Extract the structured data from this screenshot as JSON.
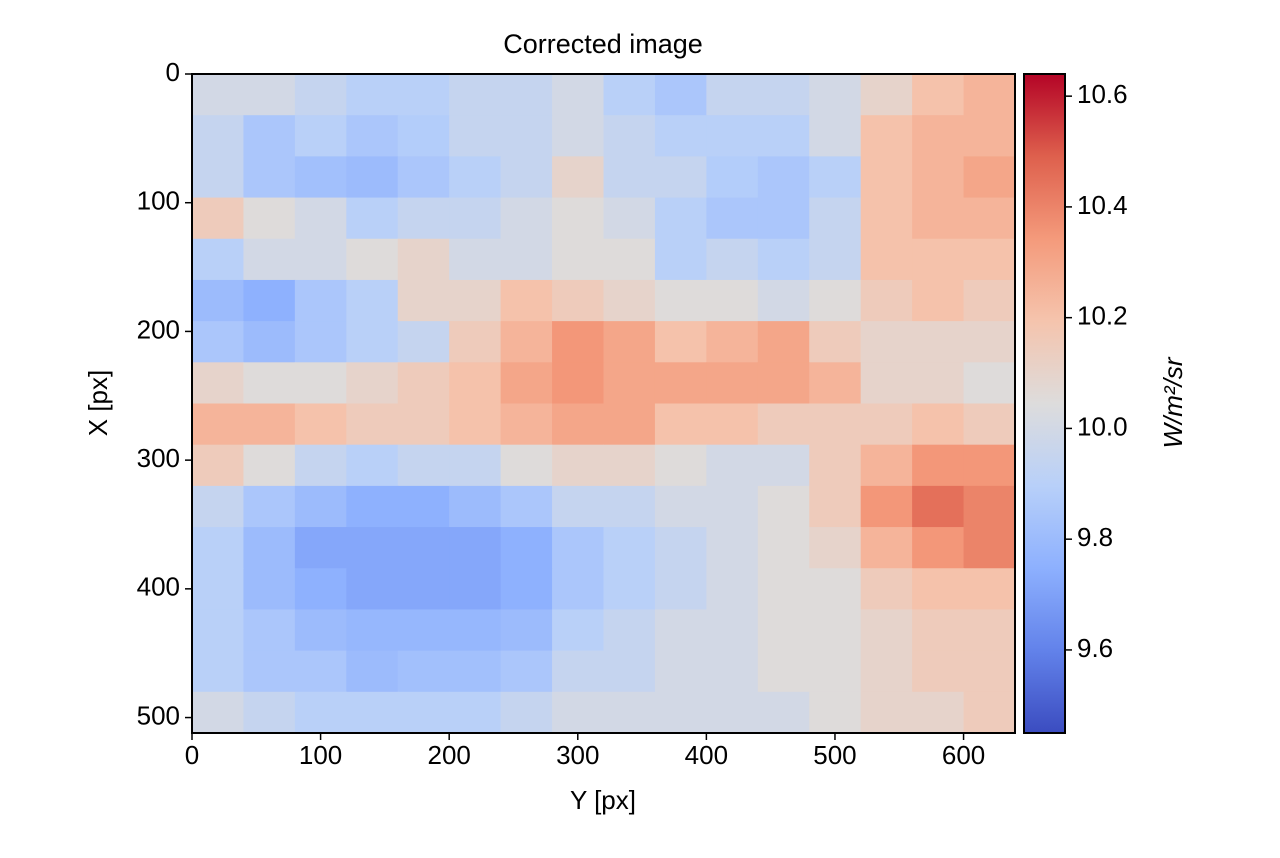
{
  "chart_data": {
    "type": "heatmap",
    "title": "Corrected image",
    "x_label": "Y [px]",
    "y_label": "X [px]",
    "colorbar_label": "W/m²/sr",
    "colormap": "coolwarm",
    "xlim": [
      0,
      640
    ],
    "xticks": [
      0,
      100,
      200,
      300,
      400,
      500,
      600
    ],
    "ylim": [
      512,
      0
    ],
    "yticks": [
      0,
      100,
      200,
      300,
      400,
      500
    ],
    "clim": [
      9.45,
      10.64
    ],
    "cticks": [
      9.6,
      9.8,
      {
        "value": 10,
        "label": "10.0"
      },
      10.2,
      10.4,
      10.6
    ],
    "values": [
      [
        10.0,
        10.0,
        9.95,
        9.9,
        9.9,
        9.95,
        9.95,
        10.0,
        9.9,
        9.85,
        9.95,
        9.95,
        10.0,
        10.1,
        10.2,
        10.25
      ],
      [
        9.95,
        9.85,
        9.9,
        9.85,
        9.88,
        9.95,
        9.95,
        10.0,
        9.95,
        9.9,
        9.9,
        9.9,
        10.0,
        10.2,
        10.25,
        10.25
      ],
      [
        9.95,
        9.85,
        9.82,
        9.8,
        9.85,
        9.9,
        9.95,
        10.1,
        9.95,
        9.95,
        9.88,
        9.85,
        9.9,
        10.2,
        10.25,
        10.3
      ],
      [
        10.15,
        10.05,
        10.0,
        9.9,
        9.95,
        9.95,
        10.0,
        10.05,
        10.0,
        9.9,
        9.85,
        9.85,
        9.95,
        10.2,
        10.25,
        10.25
      ],
      [
        9.9,
        10.0,
        10.0,
        10.05,
        10.1,
        10.0,
        10.0,
        10.05,
        10.05,
        9.9,
        9.95,
        9.9,
        9.95,
        10.2,
        10.2,
        10.2
      ],
      [
        9.8,
        9.75,
        9.85,
        9.9,
        10.1,
        10.1,
        10.2,
        10.15,
        10.1,
        10.05,
        10.05,
        10.0,
        10.05,
        10.15,
        10.2,
        10.15
      ],
      [
        9.85,
        9.8,
        9.85,
        9.9,
        9.95,
        10.15,
        10.25,
        10.35,
        10.3,
        10.2,
        10.25,
        10.3,
        10.15,
        10.1,
        10.1,
        10.1
      ],
      [
        10.1,
        10.05,
        10.05,
        10.1,
        10.15,
        10.2,
        10.3,
        10.35,
        10.3,
        10.3,
        10.3,
        10.3,
        10.25,
        10.1,
        10.1,
        10.05
      ],
      [
        10.25,
        10.25,
        10.2,
        10.15,
        10.15,
        10.2,
        10.25,
        10.3,
        10.3,
        10.2,
        10.2,
        10.15,
        10.15,
        10.15,
        10.2,
        10.15
      ],
      [
        10.15,
        10.05,
        9.95,
        9.9,
        9.95,
        9.95,
        10.05,
        10.1,
        10.1,
        10.05,
        10.0,
        10.0,
        10.15,
        10.25,
        10.35,
        10.35
      ],
      [
        9.95,
        9.85,
        9.8,
        9.75,
        9.75,
        9.8,
        9.85,
        9.95,
        9.95,
        10.0,
        10.0,
        10.05,
        10.15,
        10.35,
        10.45,
        10.4
      ],
      [
        9.9,
        9.8,
        9.72,
        9.72,
        9.72,
        9.72,
        9.75,
        9.85,
        9.9,
        9.95,
        10.0,
        10.05,
        10.1,
        10.25,
        10.35,
        10.4
      ],
      [
        9.9,
        9.8,
        9.75,
        9.72,
        9.72,
        9.72,
        9.75,
        9.85,
        9.9,
        9.95,
        10.0,
        10.05,
        10.05,
        10.15,
        10.2,
        10.2
      ],
      [
        9.9,
        9.85,
        9.8,
        9.78,
        9.78,
        9.78,
        9.8,
        9.9,
        9.95,
        10.0,
        10.0,
        10.05,
        10.05,
        10.1,
        10.15,
        10.15
      ],
      [
        9.9,
        9.85,
        9.85,
        9.8,
        9.82,
        9.82,
        9.85,
        9.95,
        9.95,
        10.0,
        10.0,
        10.05,
        10.05,
        10.1,
        10.15,
        10.15
      ],
      [
        10.0,
        9.95,
        9.9,
        9.9,
        9.9,
        9.9,
        9.95,
        10.0,
        10.0,
        10.0,
        10.0,
        10.0,
        10.05,
        10.1,
        10.1,
        10.15
      ]
    ]
  }
}
